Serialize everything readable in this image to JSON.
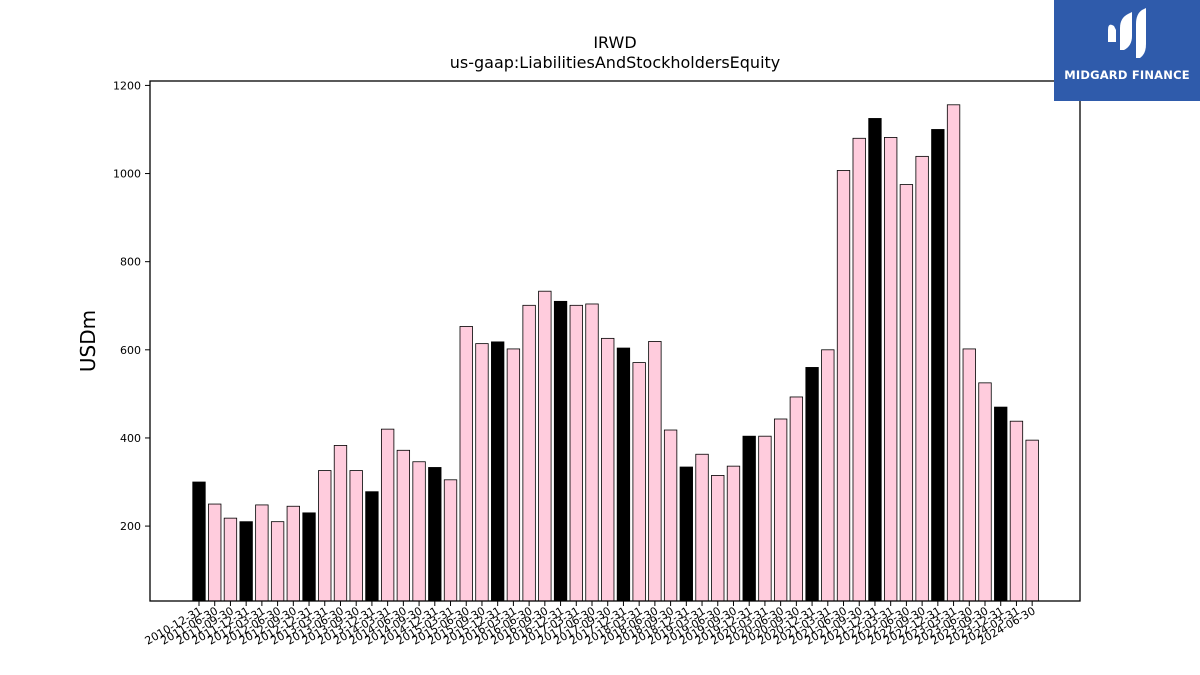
{
  "logo": {
    "text": "MIDGARD FINANCE"
  },
  "chart_data": {
    "type": "bar",
    "title": "IRWD",
    "subtitle": "us-gaap:LiabilitiesAndStockholdersEquity",
    "ylabel": "USDm",
    "xlabel": "",
    "ylim": [
      30,
      1210
    ],
    "yticks": [
      200,
      400,
      600,
      800,
      1000,
      1200
    ],
    "grid": false,
    "colors": {
      "annual": "#000000",
      "quarterly": "#ffccdd",
      "edge": "#000000"
    },
    "categories": [
      "2010-12-31",
      "2011-06-30",
      "2011-09-30",
      "2011-12-31",
      "2012-03-31",
      "2012-06-30",
      "2012-09-30",
      "2012-12-31",
      "2013-03-31",
      "2013-06-30",
      "2013-09-30",
      "2013-12-31",
      "2014-03-31",
      "2014-06-30",
      "2014-09-30",
      "2014-12-31",
      "2015-03-31",
      "2015-06-30",
      "2015-09-30",
      "2015-12-31",
      "2016-03-31",
      "2016-06-30",
      "2016-09-30",
      "2016-12-31",
      "2017-03-31",
      "2017-06-30",
      "2017-09-30",
      "2017-12-31",
      "2018-03-31",
      "2018-06-30",
      "2018-09-30",
      "2018-12-31",
      "2019-03-31",
      "2019-06-30",
      "2019-09-30",
      "2019-12-31",
      "2020-03-31",
      "2020-06-30",
      "2020-09-30",
      "2020-12-31",
      "2021-03-31",
      "2021-06-30",
      "2021-09-30",
      "2021-12-31",
      "2022-03-31",
      "2022-06-30",
      "2022-09-30",
      "2022-12-31",
      "2023-03-31",
      "2023-06-30",
      "2023-09-30",
      "2023-12-31",
      "2024-03-31",
      "2024-06-30"
    ],
    "values": [
      300,
      250,
      218,
      210,
      248,
      210,
      245,
      230,
      326,
      383,
      326,
      278,
      420,
      372,
      346,
      333,
      305,
      653,
      614,
      618,
      602,
      701,
      733,
      710,
      701,
      704,
      626,
      604,
      571,
      619,
      418,
      334,
      363,
      315,
      336,
      404,
      404,
      443,
      493,
      560,
      600,
      1007,
      1080,
      1125,
      1082,
      975,
      1039,
      1100,
      1156,
      602,
      525,
      470,
      438,
      395
    ],
    "annual": [
      true,
      false,
      false,
      true,
      false,
      false,
      false,
      true,
      false,
      false,
      false,
      true,
      false,
      false,
      false,
      true,
      false,
      false,
      false,
      true,
      false,
      false,
      false,
      true,
      false,
      false,
      false,
      true,
      false,
      false,
      false,
      true,
      false,
      false,
      false,
      true,
      false,
      false,
      false,
      true,
      false,
      false,
      false,
      true,
      false,
      false,
      false,
      true,
      false,
      false,
      false,
      true,
      false,
      false
    ]
  }
}
